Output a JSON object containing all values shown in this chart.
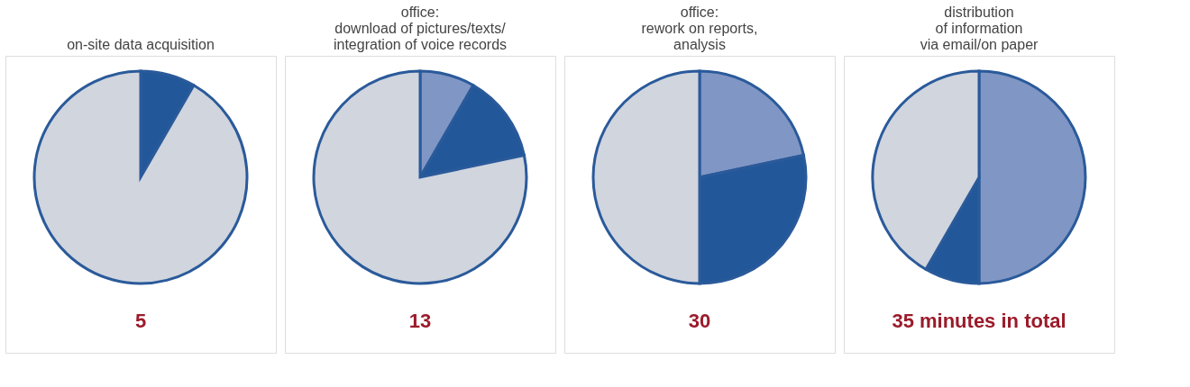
{
  "chart_data": [
    {
      "type": "pie",
      "title": [
        "on-site data acquisition"
      ],
      "categories": [
        null,
        null
      ],
      "values": [
        8.33,
        91.67
      ],
      "colors": [
        "#22589a",
        "#d0d5de"
      ],
      "annotations": [
        "5"
      ]
    },
    {
      "type": "pie",
      "title": [
        "office:",
        "download of pictures/texts/",
        "integration of voice records"
      ],
      "categories": [
        null,
        null,
        null
      ],
      "values": [
        8.33,
        13.33,
        78.34
      ],
      "colors": [
        "#8096c4",
        "#22589a",
        "#d0d5de"
      ],
      "annotations": [
        "13"
      ]
    },
    {
      "type": "pie",
      "title": [
        "office:",
        "rework on reports,",
        "analysis"
      ],
      "categories": [
        null,
        null,
        null
      ],
      "values": [
        21.67,
        28.33,
        50
      ],
      "colors": [
        "#8096c4",
        "#22589a",
        "#d0d5de"
      ],
      "annotations": [
        "30"
      ]
    },
    {
      "type": "pie",
      "title": [
        "distribution",
        "of information",
        "via email/on paper"
      ],
      "categories": [
        null,
        null,
        null
      ],
      "values": [
        50,
        8.33,
        41.67
      ],
      "colors": [
        "#8096c4",
        "#22589a",
        "#d0d5de"
      ],
      "annotations": [
        "35 minutes in total"
      ]
    }
  ]
}
